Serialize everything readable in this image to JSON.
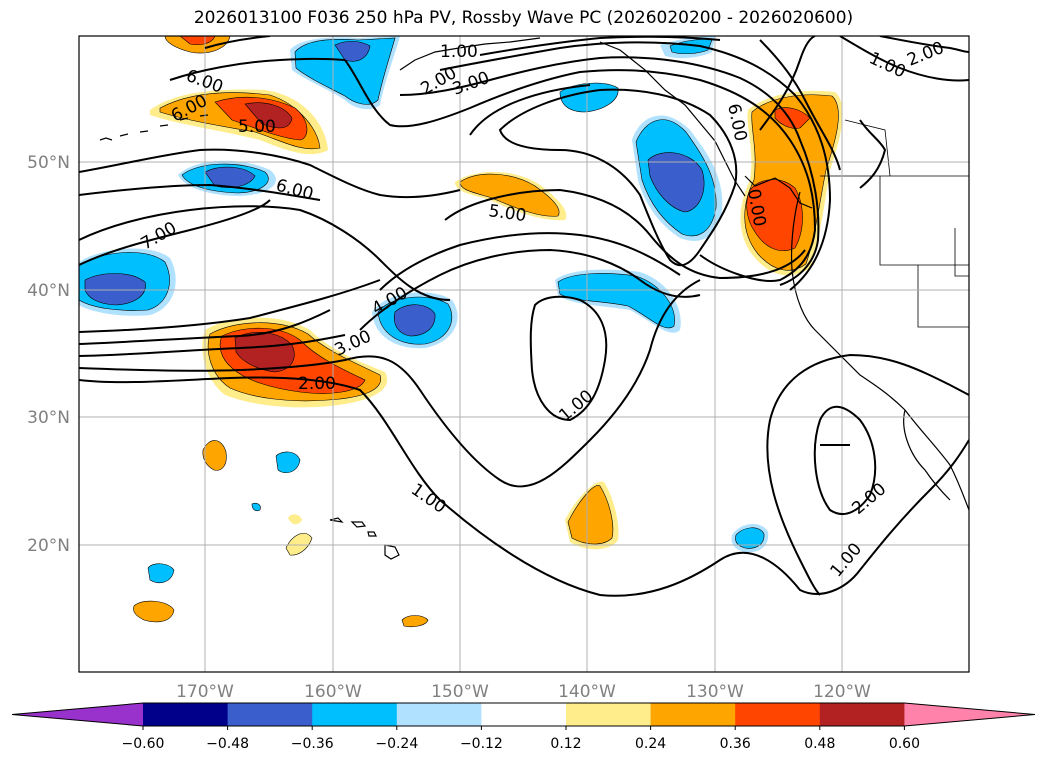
{
  "title": "2026013100 F036 250 hPa PV, Rossby Wave PC (2026020200 - 2026020600)",
  "lat_labels": [
    "50°N",
    "40°N",
    "30°N",
    "20°N"
  ],
  "lon_labels": [
    "170°W",
    "160°W",
    "150°W",
    "140°W",
    "130°W",
    "120°W"
  ],
  "contour_labels": [
    "6.00",
    "6.00",
    "5.00",
    "6.00",
    "7.00",
    "1.00",
    "2.00",
    "3.00",
    "5.00",
    "4.00",
    "3.00",
    "2.00",
    "1.00",
    "1.00",
    "6.00",
    "0.00",
    "1.00",
    "2.00",
    "2.00",
    "1.00"
  ],
  "colorbar": {
    "tick_labels": [
      "−0.60",
      "−0.48",
      "−0.36",
      "−0.24",
      "−0.12",
      "0.12",
      "0.24",
      "0.36",
      "0.48",
      "0.60"
    ],
    "colors": [
      "#9932cc",
      "#00008b",
      "#3a5fcd",
      "#00bfff",
      "#b0e2ff",
      "#ffffff",
      "#ffec8b",
      "#ffa500",
      "#ff4500",
      "#b22222",
      "#ff82ab"
    ]
  }
}
